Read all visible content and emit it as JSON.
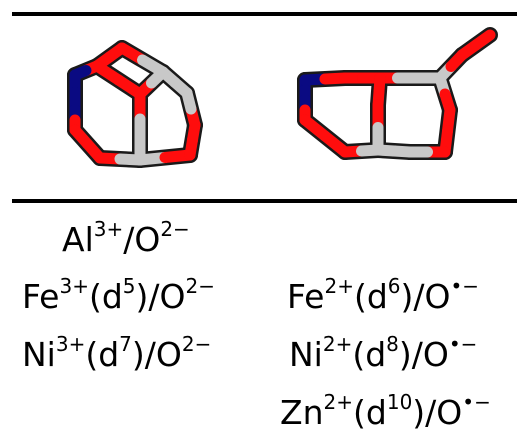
{
  "colors": {
    "oxygen": "#ff0d0d",
    "metal": "#c8c8c8",
    "nitrogen": "#0a0a82",
    "bond_outline": "#1a1a1a"
  },
  "structures": [
    "left-cage-structure",
    "right-bicyclic-structure"
  ],
  "left_column": [
    {
      "ion": "Al",
      "charge": "3+",
      "config": "",
      "sep": "/O",
      "lig_charge": "2−"
    },
    {
      "ion": "Fe",
      "charge": "3+",
      "config_open": "(d",
      "config_exp": "5",
      "config_close": ")",
      "sep": "/O",
      "lig_charge": "2−"
    },
    {
      "ion": "Ni",
      "charge": "3+",
      "config_open": "(d",
      "config_exp": "7",
      "config_close": ")",
      "sep": "/O",
      "lig_charge": "2−"
    }
  ],
  "right_column": [
    {
      "ion": "Fe",
      "charge": "2+",
      "config_open": "(d",
      "config_exp": "6",
      "config_close": ")",
      "sep": "/O",
      "lig_charge": "•−"
    },
    {
      "ion": "Ni",
      "charge": "2+",
      "config_open": "(d",
      "config_exp": "8",
      "config_close": ")",
      "sep": "/O",
      "lig_charge": "•−"
    },
    {
      "ion": "Zn",
      "charge": "2+",
      "config_open": "(d",
      "config_exp": "10",
      "config_close": ")",
      "sep": "/O",
      "lig_charge": "•−"
    }
  ]
}
